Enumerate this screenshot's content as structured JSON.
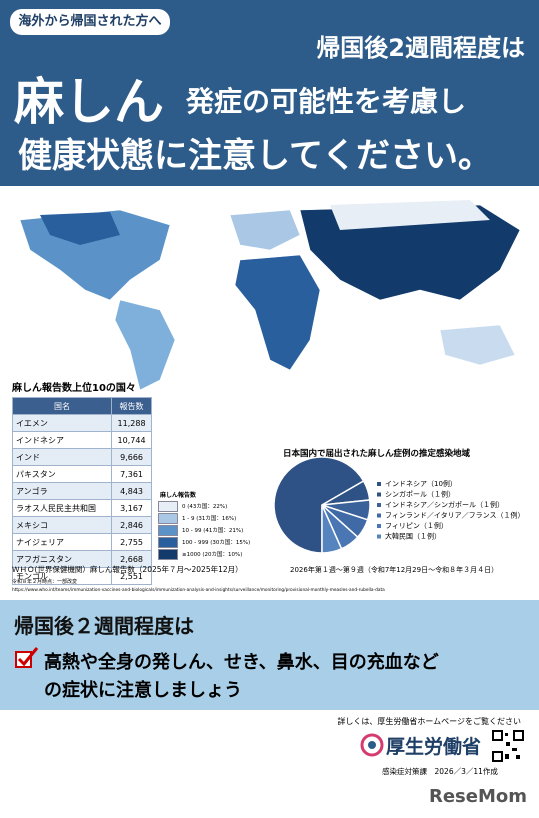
{
  "header": {
    "tag": "海外から帰国された方へ",
    "line1": "帰国後2週間程度は",
    "big": "麻しん",
    "line2": "発症の可能性を考慮し",
    "line3": "健康状態に注意してください。"
  },
  "table": {
    "title": "麻しん報告数上位10の国々",
    "columns": [
      "国名",
      "報告数"
    ],
    "rows": [
      [
        "イエメン",
        "11,288"
      ],
      [
        "インドネシア",
        "10,744"
      ],
      [
        "インド",
        "9,666"
      ],
      [
        "パキスタン",
        "7,361"
      ],
      [
        "アンゴラ",
        "4,843"
      ],
      [
        "ラオス人民民主共和国",
        "3,167"
      ],
      [
        "メキシコ",
        "2,846"
      ],
      [
        "ナイジェリア",
        "2,755"
      ],
      [
        "アフガニスタン",
        "2,668"
      ],
      [
        "モンゴル",
        "2,551"
      ]
    ]
  },
  "map_legend": {
    "title": "麻しん報告数",
    "items": [
      {
        "label": "0 (43カ国：22%)",
        "color": "#e8eef5"
      },
      {
        "label": "1 - 9 (31カ国：16%)",
        "color": "#aac8e6"
      },
      {
        "label": "10 - 99 (41カ国：21%)",
        "color": "#5b93c9"
      },
      {
        "label": "100 - 999 (30カ国：15%)",
        "color": "#2a5f9e"
      },
      {
        "label": "≥1000 (20カ国：10%)",
        "color": "#123a6b"
      }
    ]
  },
  "pie": {
    "title": "日本国内で届出された麻しん症例の推定感染地域",
    "labels": [
      "インドネシア（10例）",
      "シンガポール（１例）",
      "インドネシア／シンガポール（１例）",
      "フィンランド／イタリア／フランス（１例）",
      "フィリピン（１例）",
      "大韓民国（１例）"
    ],
    "values": [
      10,
      1,
      1,
      1,
      1,
      1
    ],
    "colors": [
      "#2f5286",
      "#2f5286",
      "#3a6199",
      "#3f6aa6",
      "#4a77b3",
      "#5584bf"
    ],
    "caption": "2026年第１週〜第９週（令和7年12月29日〜令和８年３月４日）"
  },
  "source": {
    "line1": "ＷＨＯ(世界保健機関）麻しん報告数（2025年７月〜2025年12月）",
    "line2": "令和８年２月時点：一部改変",
    "url": "https://www.who.int/teams/immunization-vaccines-and-biologicals/immunization-analysis-and-insights/surveillance/monitoring/provisional-monthly-measles-and-rubella-data"
  },
  "notice": {
    "title": "帰国後２週間程度は",
    "line1": "高熱や全身の発しん、せき、鼻水、目の充血など",
    "line2": "の症状に注意しましょう"
  },
  "footer": {
    "more": "詳しくは、厚生労働省ホームページをご覧ください",
    "ministry": "厚生労働省",
    "made": "感染症対策課　2026／3／11作成",
    "brand": "ReseMom"
  }
}
